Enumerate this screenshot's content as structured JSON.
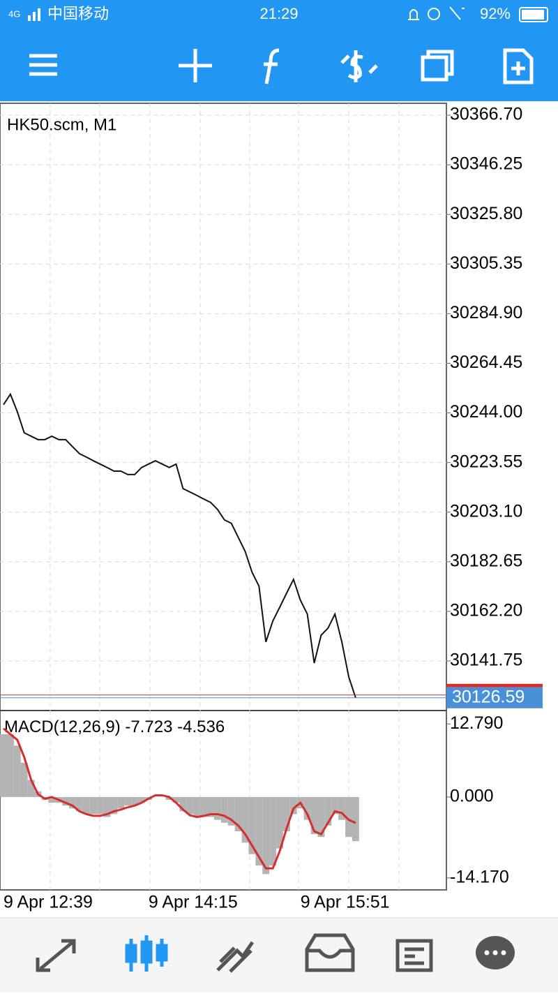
{
  "status_bar": {
    "network": "4G",
    "carrier": "中国移动",
    "time": "21:29",
    "battery": "92%"
  },
  "chart_data": [
    {
      "type": "line",
      "title": "HK50.scm, M1",
      "categories": [
        "9 Apr 12:39",
        null,
        null,
        null,
        null,
        null,
        null,
        null,
        null,
        null,
        null,
        null,
        null,
        null,
        null,
        null,
        null,
        null,
        null,
        null,
        null,
        "9 Apr 14:15",
        null,
        null,
        null,
        null,
        null,
        null,
        null,
        null,
        null,
        null,
        null,
        null,
        null,
        null,
        null,
        null,
        null,
        null,
        null,
        null,
        null,
        "9 Apr 15:51",
        null,
        null,
        null,
        null,
        null,
        null,
        null,
        null
      ],
      "values": [
        30247.4,
        30251.7,
        30244.5,
        30235.8,
        30234.4,
        30233.0,
        30233.0,
        30234.4,
        30233.0,
        30233.0,
        30230.1,
        30227.2,
        30225.8,
        30224.3,
        30222.9,
        30221.5,
        30220.0,
        30220.0,
        30218.6,
        30218.6,
        30221.5,
        30222.9,
        30224.3,
        30222.9,
        30221.5,
        30222.9,
        30212.8,
        30211.4,
        30210.0,
        30208.5,
        30207.1,
        30204.2,
        30199.9,
        30198.5,
        30192.7,
        30186.9,
        30178.3,
        30172.6,
        30149.6,
        30158.2,
        30163.9,
        30169.7,
        30175.4,
        30166.8,
        30161.1,
        30140.9,
        30152.4,
        30155.3,
        30161.1,
        30149.6,
        30135.2,
        30126.59
      ],
      "color": "#111111",
      "current_price": 30126.59,
      "current_color": "#4a90d9",
      "bid_line_color": "#d32f2f",
      "ylim": [
        30122.2,
        30371.6
      ],
      "yticks": [
        {
          "value": 30366.7,
          "label": "30366.70"
        },
        {
          "value": 30346.25,
          "label": "30346.25"
        },
        {
          "value": 30325.8,
          "label": "30325.80"
        },
        {
          "value": 30305.35,
          "label": "30305.35"
        },
        {
          "value": 30284.9,
          "label": "30284.90"
        },
        {
          "value": 30264.45,
          "label": "30264.45"
        },
        {
          "value": 30244,
          "label": "30244.00"
        },
        {
          "value": 30223.55,
          "label": "30223.55"
        },
        {
          "value": 30203.1,
          "label": "30203.10"
        },
        {
          "value": 30182.65,
          "label": "30182.65"
        },
        {
          "value": 30162.2,
          "label": "30162.20"
        },
        {
          "value": 30141.75,
          "label": "30141.75"
        }
      ],
      "grid": true
    },
    {
      "type": "bar",
      "title": "MACD(12,26,9)",
      "current": [
        -7.723,
        -4.536
      ],
      "values": [
        11,
        11,
        9,
        6,
        3,
        1,
        -0.5,
        -1,
        -1,
        -1.5,
        -2,
        -2.5,
        -3,
        -3,
        -3,
        -3.5,
        -3,
        -2,
        -1.5,
        -1.5,
        -1,
        -0.5,
        0,
        0,
        -0.5,
        -1,
        -2.5,
        -3,
        -3.5,
        -3.5,
        -3.5,
        -4,
        -4.5,
        -5,
        -6,
        -8,
        -10,
        -12,
        -13.5,
        -12,
        -9,
        -6,
        -3,
        -2,
        -4,
        -6.5,
        -7,
        -5,
        -3,
        -4,
        -7,
        -7.723
      ],
      "color": "#b4b4b4",
      "signal": {
        "values": [
          12,
          11,
          10,
          7,
          3,
          0.5,
          -0.3,
          0,
          -0.5,
          -1,
          -1.5,
          -2.5,
          -3,
          -3.3,
          -3.3,
          -3,
          -2.5,
          -2.2,
          -1.8,
          -1.5,
          -1,
          -0.3,
          0.3,
          0.3,
          0,
          -1,
          -2.2,
          -3.2,
          -3.5,
          -3.3,
          -3,
          -3,
          -3.3,
          -4,
          -5,
          -6.5,
          -8.5,
          -10.5,
          -12.5,
          -12.5,
          -9.5,
          -5.5,
          -2,
          -1,
          -3,
          -6,
          -6.5,
          -4.5,
          -2.5,
          -2.8,
          -4,
          -4.536
        ],
        "color": "#d32f2f"
      },
      "ylim": [
        -15.9,
        14.9
      ],
      "yticks": [
        {
          "value": 12.79,
          "label": "12.790"
        },
        {
          "value": 0,
          "label": "0.000"
        },
        {
          "value": -14.17,
          "label": "-14.170"
        }
      ]
    }
  ]
}
